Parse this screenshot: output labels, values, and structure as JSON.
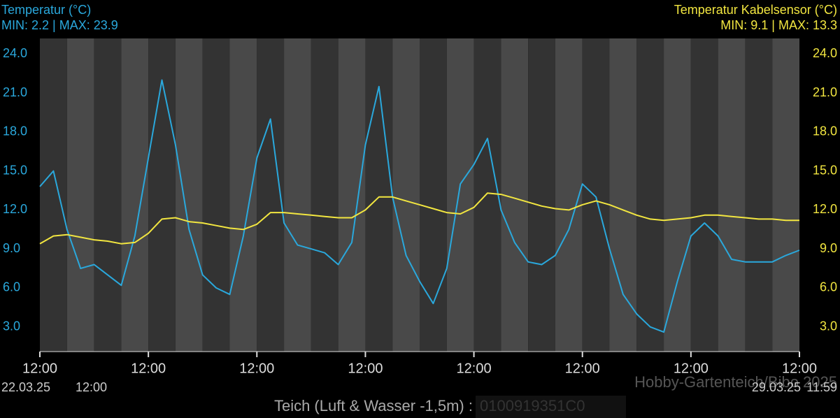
{
  "chart_data": {
    "type": "line",
    "categories": [
      "12:00",
      null,
      null,
      null,
      null,
      null,
      null,
      null,
      "12:00",
      null,
      null,
      null,
      null,
      null,
      null,
      null,
      "12:00",
      null,
      null,
      null,
      null,
      null,
      null,
      null,
      "12:00",
      null,
      null,
      null,
      null,
      null,
      null,
      null,
      "12:00",
      null,
      null,
      null,
      null,
      null,
      null,
      null,
      "12:00",
      null,
      null,
      null,
      null,
      null,
      null,
      null,
      "12:00",
      null,
      null,
      null,
      null,
      null,
      null,
      null,
      "12:00"
    ],
    "series": [
      {
        "name": "Temperatur (°C)",
        "stats": "MIN: 2.2 | MAX: 23.9",
        "color": "#2aa8dc",
        "values": [
          13.8,
          15.0,
          10.5,
          7.5,
          7.8,
          7.0,
          6.2,
          10,
          16.0,
          22,
          17,
          10.5,
          7,
          6,
          5.5,
          10,
          16,
          19.0,
          11,
          9.3,
          9.0,
          8.7,
          7.8,
          9.5,
          17,
          21.5,
          13,
          8.5,
          6.5,
          4.8,
          7.5,
          14,
          15.5,
          17.5,
          12,
          9.5,
          8.0,
          7.8,
          8.5,
          10.5,
          14,
          13,
          9,
          5.5,
          4.0,
          3.0,
          2.6,
          6.5,
          10,
          11,
          10,
          8.2,
          8.0,
          8.0,
          8.0,
          8.5,
          8.9
        ]
      },
      {
        "name": "Temperatur Kabelsensor (°C)",
        "stats": "MIN: 9.1 | MAX: 13.3",
        "color": "#f2e640",
        "axis": "y2",
        "values": [
          9.4,
          10.0,
          10.1,
          9.9,
          9.7,
          9.6,
          9.4,
          9.5,
          10.2,
          11.3,
          11.4,
          11.1,
          11.0,
          10.8,
          10.6,
          10.5,
          10.9,
          11.8,
          11.8,
          11.7,
          11.6,
          11.5,
          11.4,
          11.4,
          12.0,
          13.0,
          13.0,
          12.7,
          12.4,
          12.1,
          11.8,
          11.7,
          12.2,
          13.3,
          13.2,
          12.9,
          12.6,
          12.3,
          12.1,
          12.0,
          12.4,
          12.7,
          12.4,
          12.0,
          11.6,
          11.3,
          11.2,
          11.3,
          11.4,
          11.6,
          11.6,
          11.5,
          11.4,
          11.3,
          11.3,
          11.2,
          11.2
        ]
      }
    ],
    "ylim": [
      1.1,
      25.2
    ],
    "yticks": [
      {
        "value": 3,
        "label": "3.0"
      },
      {
        "value": 6,
        "label": "6.0"
      },
      {
        "value": 9,
        "label": "9.0"
      },
      {
        "value": 12,
        "label": "12.0"
      },
      {
        "value": 15,
        "label": "15.0"
      },
      {
        "value": 18,
        "label": "18.0"
      },
      {
        "value": 21,
        "label": "21.0"
      },
      {
        "value": 24,
        "label": "24.0"
      }
    ],
    "y2lim": [
      1.1,
      25.2
    ],
    "y2ticks": [
      {
        "value": 3,
        "label": "3.0"
      },
      {
        "value": 6,
        "label": "6.0"
      },
      {
        "value": 9,
        "label": "9.0"
      },
      {
        "value": 12,
        "label": "12.0"
      },
      {
        "value": 15,
        "label": "15.0"
      },
      {
        "value": 18,
        "label": "18.0"
      },
      {
        "value": 21,
        "label": "21.0"
      },
      {
        "value": 24,
        "label": "24.0"
      }
    ],
    "footer": {
      "start_date": "22.03.25",
      "start_time": "12:00",
      "end_date": "29.03.25",
      "end_time": "11:59",
      "title": "Teich (Luft & Wasser -1,5m) :",
      "device_id": "0100919351C0"
    },
    "watermark": "Hobby-Gartenteich/Bibo 2025"
  }
}
